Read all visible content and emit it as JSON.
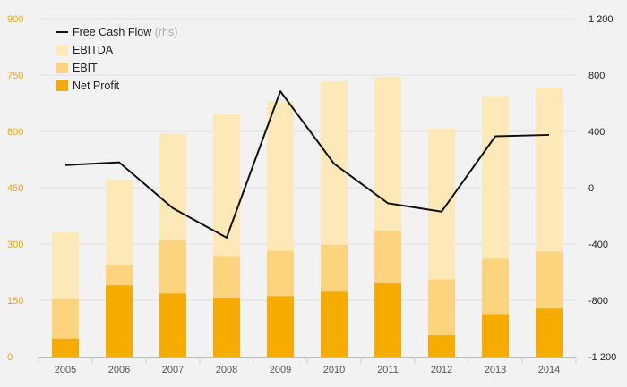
{
  "chart_data": {
    "type": "bar",
    "categories": [
      "2005",
      "2006",
      "2007",
      "2008",
      "2009",
      "2010",
      "2011",
      "2012",
      "2013",
      "2014"
    ],
    "y_left": {
      "min": 0,
      "max": 900,
      "ticks": [
        0,
        150,
        300,
        450,
        600,
        750,
        900
      ],
      "tick_labels": [
        "0",
        "150",
        "300",
        "450",
        "600",
        "750",
        "900"
      ]
    },
    "y_right": {
      "min": -1200,
      "max": 1200,
      "ticks": [
        -1200,
        -800,
        -400,
        0,
        400,
        800,
        1200
      ],
      "tick_labels": [
        "-1 200",
        "-800",
        "-400",
        "0",
        "400",
        "800",
        "1 200"
      ]
    },
    "series": [
      {
        "name": "EBITDA",
        "kind": "bar",
        "color": "#fde8b8",
        "values": [
          332,
          472,
          594,
          645,
          680,
          733,
          745,
          607,
          693,
          717
        ]
      },
      {
        "name": "EBIT",
        "kind": "bar",
        "color": "#fcd47e",
        "values": [
          153,
          243,
          310,
          268,
          282,
          298,
          336,
          206,
          261,
          280
        ]
      },
      {
        "name": "Net Profit",
        "kind": "bar",
        "color": "#f5ab00",
        "values": [
          48,
          190,
          168,
          157,
          161,
          173,
          195,
          57,
          113,
          128
        ]
      },
      {
        "name": "Free Cash Flow",
        "suffix": "(rhs)",
        "kind": "line",
        "axis": "right",
        "color": "#111111",
        "values": [
          160,
          180,
          -145,
          -355,
          685,
          170,
          -110,
          -170,
          365,
          375
        ]
      }
    ],
    "legend_position": "top-left",
    "grid": true
  }
}
